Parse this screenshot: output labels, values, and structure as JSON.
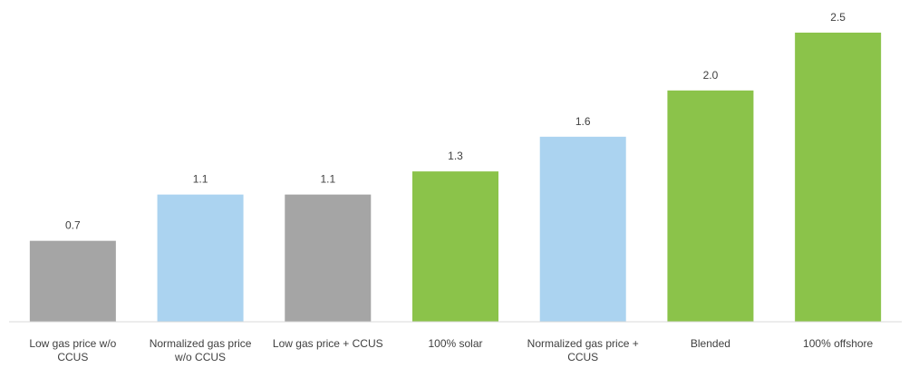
{
  "chart_data": {
    "type": "bar",
    "categories": [
      "Low gas price w/o CCUS",
      "Normalized gas price w/o CCUS",
      "Low gas price + CCUS",
      "100% solar",
      "Normalized gas price + CCUS",
      "Blended",
      "100% offshore"
    ],
    "values": [
      0.7,
      1.1,
      1.1,
      1.3,
      1.6,
      2.0,
      2.5
    ],
    "value_labels": [
      "0.7",
      "1.1",
      "1.1",
      "1.3",
      "1.6",
      "2.0",
      "2.5"
    ],
    "colors": [
      "#a5a5a5",
      "#abd3f0",
      "#a5a5a5",
      "#8bc34a",
      "#abd3f0",
      "#8bc34a",
      "#8bc34a"
    ]
  }
}
